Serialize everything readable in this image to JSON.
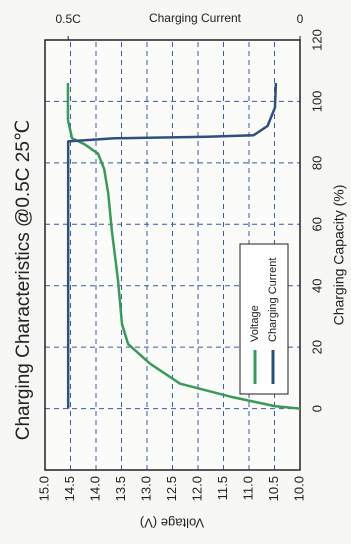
{
  "chart_data": {
    "type": "line",
    "title": "Charging Characteristics @0.5C 25℃",
    "xlabel": "Charging Capacity (%)",
    "ylabel": "Voltage (V)",
    "y2label": "Charging Current",
    "xlim": [
      -20,
      120
    ],
    "xticks": [
      0,
      20,
      40,
      60,
      80,
      100,
      120
    ],
    "ylim": [
      10,
      15
    ],
    "yticks": [
      {
        "value": 10,
        "label": "10.0"
      },
      10.5,
      {
        "value": 11,
        "label": "11.0"
      },
      11.5,
      {
        "value": 12,
        "label": "12.0"
      },
      12.5,
      {
        "value": 13,
        "label": "13.0"
      },
      13.5,
      {
        "value": 14,
        "label": "14.0"
      },
      14.5,
      {
        "value": 15,
        "label": "15.0"
      }
    ],
    "y2lim": [
      0,
      0.55
    ],
    "y2ticks": [
      0,
      {
        "value": 0.5,
        "label": "0.5C"
      }
    ],
    "grid": true,
    "legend": "lower left",
    "series": [
      {
        "name": "Voltage",
        "color": "#3a9a5a",
        "x": [
          0,
          0.8,
          3.9,
          8.1,
          14.6,
          21,
          27.5,
          42,
          58,
          70,
          78,
          83,
          86,
          88,
          94,
          106
        ],
        "values": [
          10.0,
          10.5,
          11.37,
          12.35,
          12.94,
          13.37,
          13.49,
          13.57,
          13.69,
          13.76,
          13.84,
          13.96,
          14.22,
          14.47,
          14.55,
          14.55
        ]
      },
      {
        "name": "Charging Current",
        "color": "#2f4f7f",
        "axis": "y2",
        "x": [
          0,
          87,
          88,
          88.5,
          89,
          92,
          98,
          106
        ],
        "values": [
          0.5,
          0.5,
          0.4,
          0.2,
          0.1,
          0.07,
          0.054,
          0.052
        ]
      }
    ]
  }
}
